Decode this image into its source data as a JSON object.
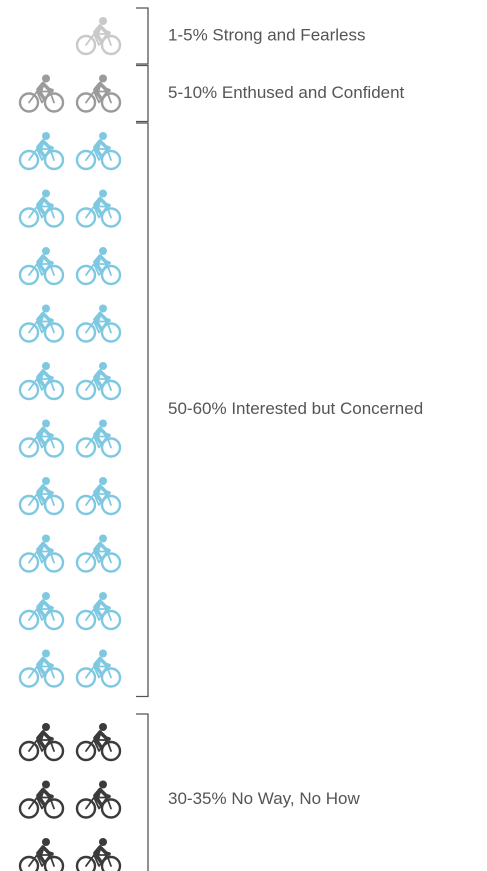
{
  "groups": [
    {
      "label": "1-5% Strong and Fearless",
      "icons": 1,
      "color": "#c9c9c9"
    },
    {
      "label": "5-10% Enthused and Confident",
      "icons": 2,
      "color": "#9b9b9b"
    },
    {
      "label": "50-60% Interested but Concerned",
      "icons": 20,
      "color": "#7ec9e1"
    },
    {
      "label": "30-35% No Way, No How",
      "icons": 6,
      "color": "#3b3b3b"
    }
  ]
}
